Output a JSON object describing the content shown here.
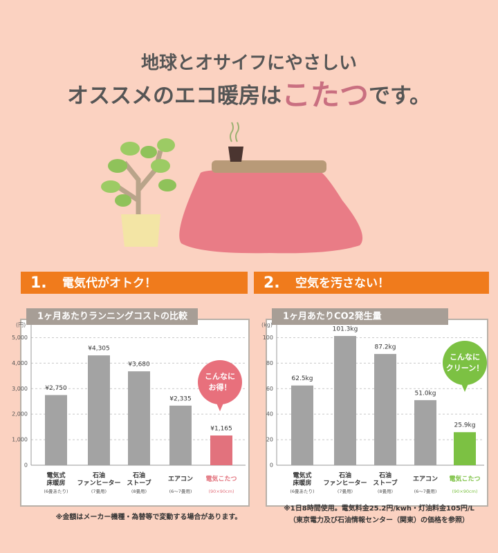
{
  "header": {
    "line1": "地球とオサイフにやさしい",
    "line2_before": "オススメのエコ暖房は",
    "line2_highlight": "こたつ",
    "line2_after": "です。"
  },
  "sections": [
    {
      "number": "1.",
      "title": "電気代がオトク！"
    },
    {
      "number": "2.",
      "title": "空気を汚さない！"
    }
  ],
  "chart_data": [
    {
      "type": "bar",
      "title": "1ヶ月あたりランニングコストの比較",
      "unit": "(円)",
      "categories": [
        "電気式\n床暖房",
        "石油\nファンヒーター",
        "石油\nストーブ",
        "エアコン",
        "電気こたつ"
      ],
      "category_notes": [
        "(6畳あたり)",
        "(7畳用)",
        "(8畳用)",
        "(6～7畳用)",
        "(90×90cm)"
      ],
      "values": [
        2750,
        4305,
        3680,
        2335,
        1165
      ],
      "value_labels": [
        "¥2,750",
        "¥4,305",
        "¥3,680",
        "¥2,335",
        "¥1,165"
      ],
      "colors": [
        "#a3a3a3",
        "#a3a3a3",
        "#a3a3a3",
        "#a3a3a3",
        "#e2727d"
      ],
      "ylim": [
        0,
        5500
      ],
      "yticks": [
        0,
        {
          "value": 1000,
          "label": "1,000"
        },
        {
          "value": 2000,
          "label": "2,000"
        },
        {
          "value": 3000,
          "label": "3,000"
        },
        {
          "value": 4000,
          "label": "4,000"
        },
        {
          "value": 5000,
          "label": "5,000"
        }
      ],
      "grid": true,
      "annotation": "こんなに\nお得！",
      "annotation_color": "#e8707c",
      "footnote": "※金額はメーカー機種・為替等で変動する場合があります。"
    },
    {
      "type": "bar",
      "title": "1ヶ月あたりCO2発生量",
      "unit": "(kg)",
      "categories": [
        "電気式\n床暖房",
        "石油\nファンヒーター",
        "石油\nストーブ",
        "エアコン",
        "電気こたつ"
      ],
      "category_notes": [
        "(6畳あたり)",
        "(7畳用)",
        "(8畳用)",
        "(6～7畳用)",
        "(90×90cm)"
      ],
      "values": [
        62.5,
        101.3,
        87.2,
        51.0,
        25.9
      ],
      "value_labels": [
        "62.5kg",
        "101.3kg",
        "87.2kg",
        "51.0kg",
        "25.9kg"
      ],
      "colors": [
        "#a3a3a3",
        "#a3a3a3",
        "#a3a3a3",
        "#a3a3a3",
        "#7cc143"
      ],
      "ylim": [
        0,
        110
      ],
      "yticks": [
        0,
        20,
        40,
        60,
        80,
        100
      ],
      "grid": true,
      "annotation": "こんなに\nクリーン！",
      "annotation_color": "#7cc143",
      "footnote": "※1日8時間使用。電気料金25.2円/kwh・灯油料金105円/L\n（東京電力及び石油情報センター（関東）の価格を参照）"
    }
  ]
}
